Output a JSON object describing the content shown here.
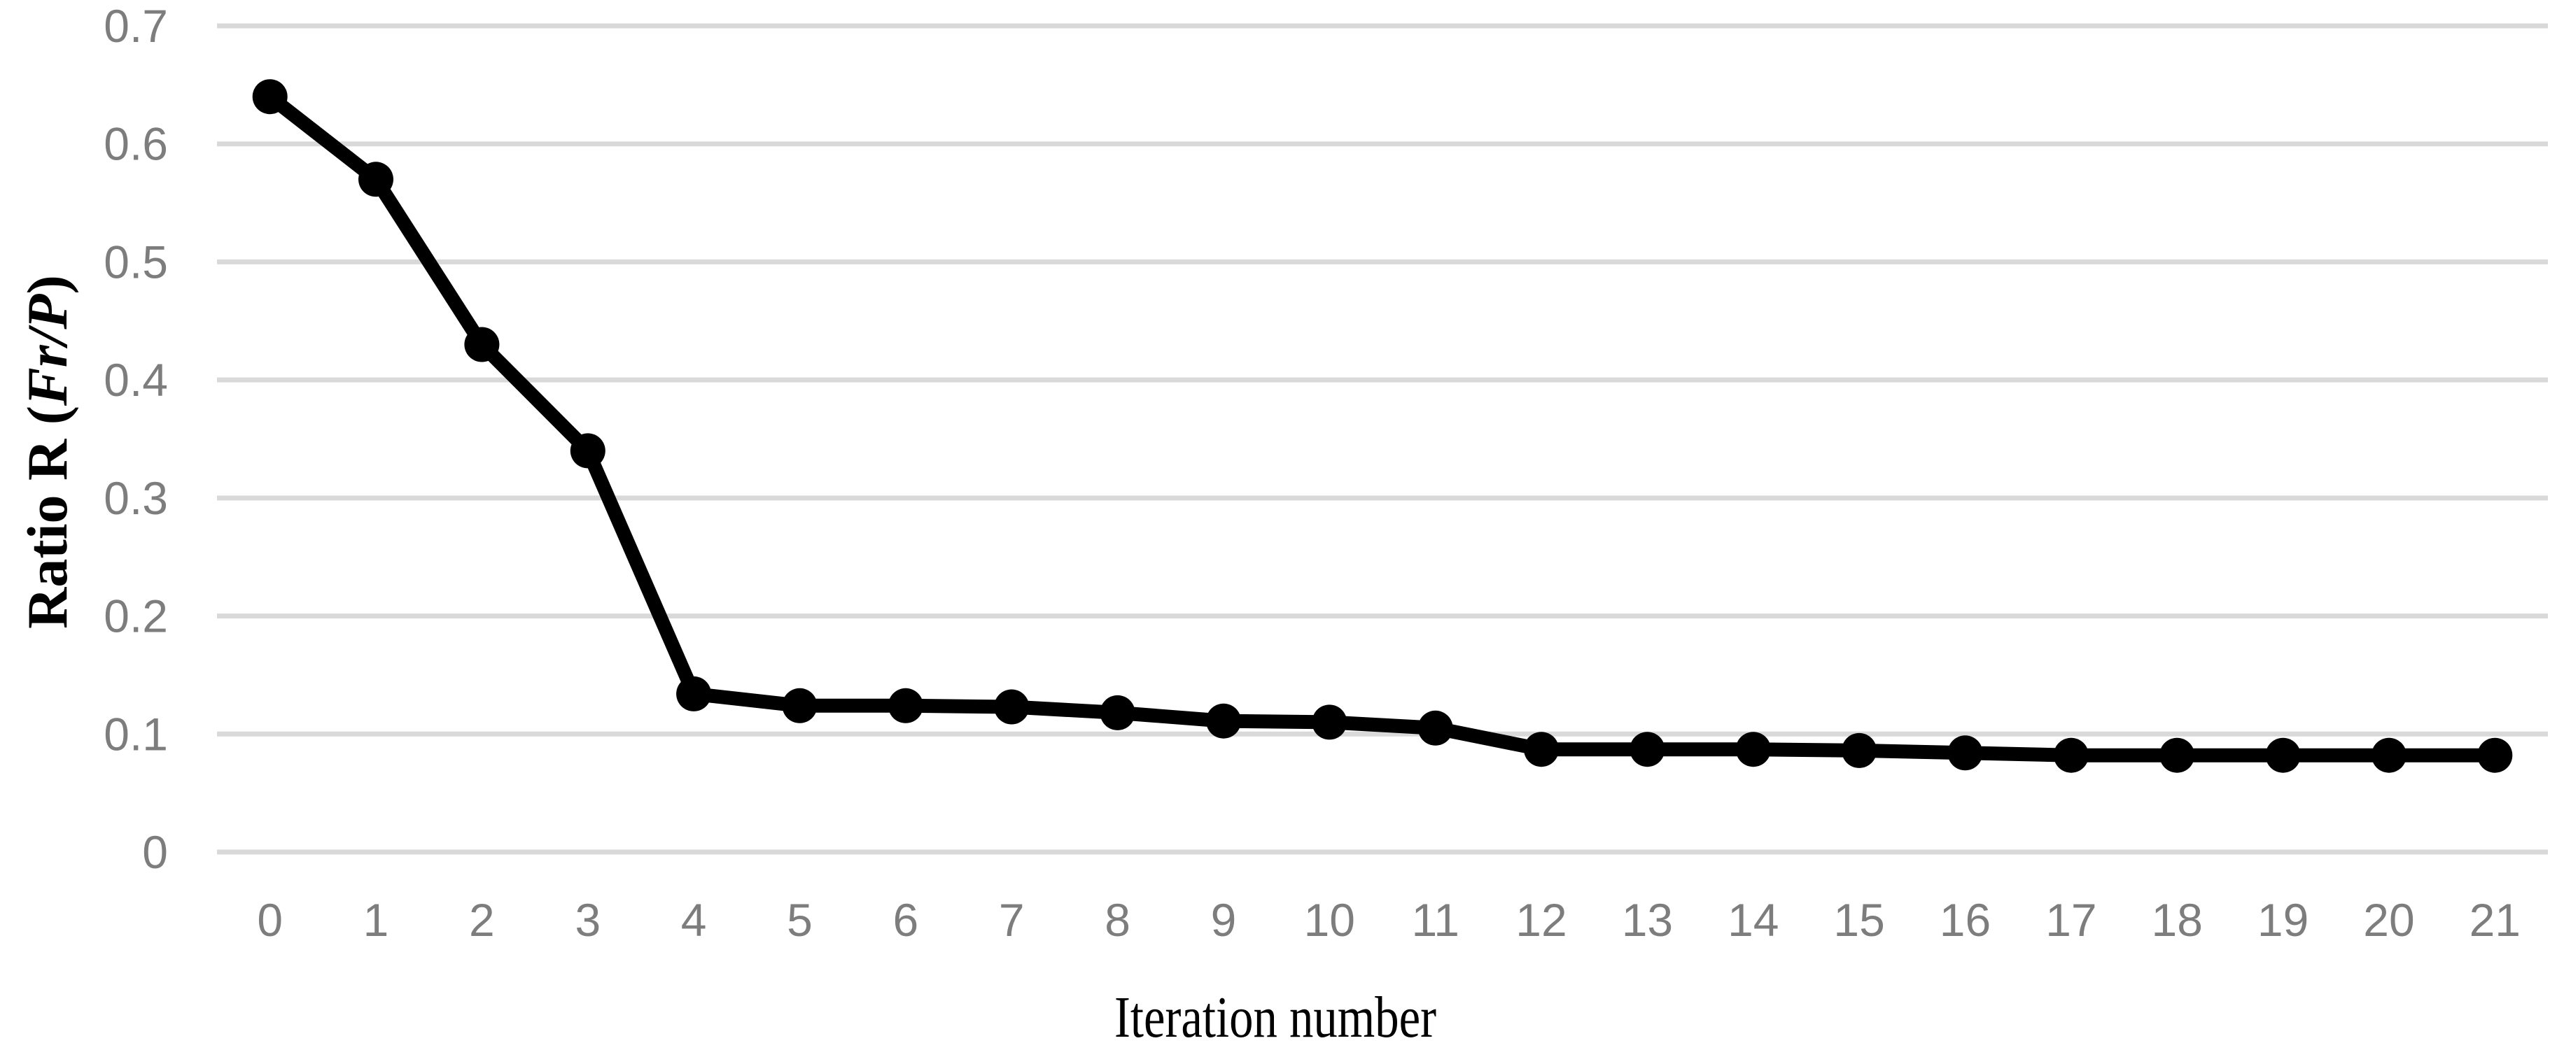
{
  "chart_data": {
    "type": "line",
    "title": "",
    "xlabel": "Iteration number",
    "ylabel": "Ratio R (Fr/P)",
    "ylabel_parts": [
      "Ratio R (",
      "Fr/P",
      ")"
    ],
    "categories": [
      "0",
      "1",
      "2",
      "3",
      "4",
      "5",
      "6",
      "7",
      "8",
      "9",
      "10",
      "11",
      "12",
      "13",
      "14",
      "15",
      "16",
      "17",
      "18",
      "19",
      "20",
      "21"
    ],
    "series": [
      {
        "name": "Ratio R (Fr/P)",
        "values": [
          0.64,
          0.57,
          0.43,
          0.34,
          0.134,
          0.124,
          0.124,
          0.123,
          0.118,
          0.111,
          0.11,
          0.105,
          0.087,
          0.087,
          0.087,
          0.086,
          0.084,
          0.082,
          0.082,
          0.082,
          0.082,
          0.082
        ]
      }
    ],
    "ylim": [
      0,
      0.7
    ],
    "yticks": [
      0,
      0.1,
      0.2,
      0.3,
      0.4,
      0.5,
      0.6,
      0.7
    ],
    "ytick_labels": [
      "0",
      "0.1",
      "0.2",
      "0.3",
      "0.4",
      "0.5",
      "0.6",
      "0.7"
    ],
    "grid": "horizontal-only",
    "legend_position": "none",
    "marker_style": "filled-circle",
    "colors": {
      "line": "#000000",
      "marker": "#000000",
      "gridline": "#d9d9d9",
      "tick_label": "#7d7d7d",
      "axis_title": "#000000",
      "background": "#ffffff"
    }
  }
}
